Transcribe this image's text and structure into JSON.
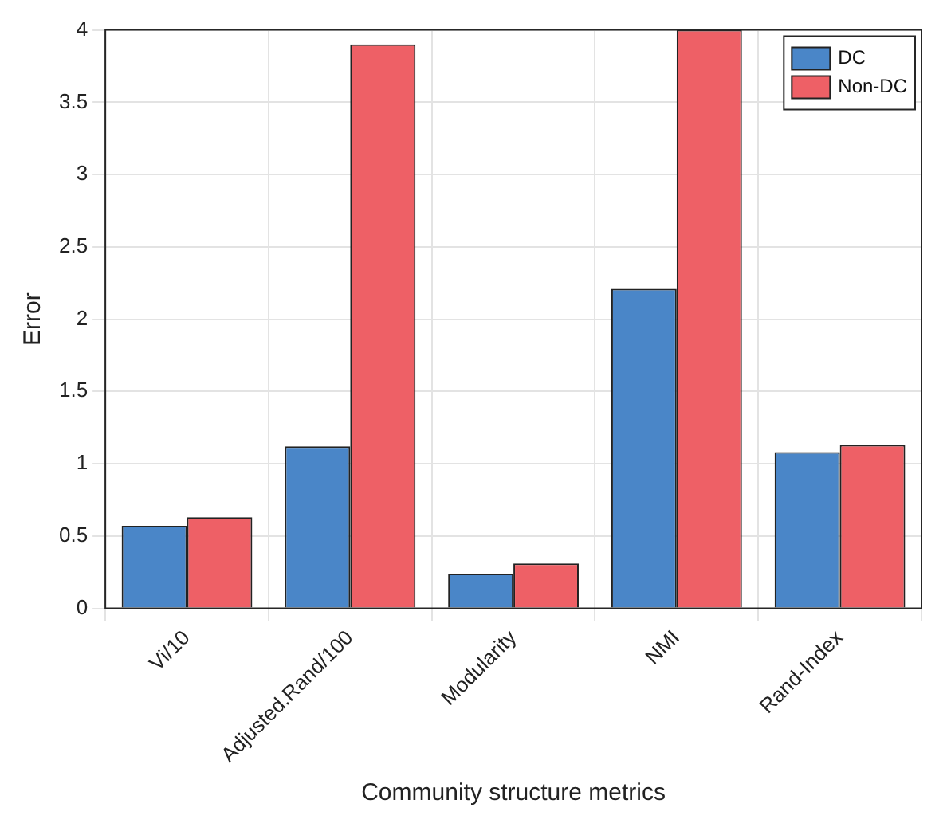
{
  "chart_data": {
    "type": "bar",
    "xlabel": "Community structure metrics",
    "ylabel": "Error",
    "categories": [
      "Vi/10",
      "Adjusted.Rand/100",
      "Modularity",
      "NMI",
      "Rand-Index"
    ],
    "series": [
      {
        "name": "DC",
        "color": "#4a86c8",
        "values": [
          0.57,
          1.12,
          0.24,
          2.21,
          1.08
        ]
      },
      {
        "name": "Non-DC",
        "color": "#ee6066",
        "values": [
          0.63,
          3.9,
          0.31,
          4.0,
          1.13
        ]
      }
    ],
    "ylim": [
      0,
      4
    ],
    "yticks": [
      0,
      0.5,
      1,
      1.5,
      2,
      2.5,
      3,
      3.5,
      4
    ],
    "grid": true,
    "legend": "top right"
  }
}
